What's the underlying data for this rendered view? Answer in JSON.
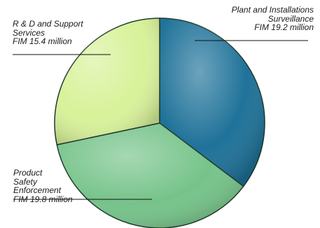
{
  "chart_data": {
    "type": "pie",
    "unit": "FIM million",
    "slices": [
      {
        "name": "Plant and Installations Surveillance",
        "value": 19.2,
        "color": "#1f7299",
        "label_lines": [
          "Plant and Installations",
          "Surveillance",
          "FIM 19.2 million"
        ]
      },
      {
        "name": "Product Safety Enforcement",
        "value": 19.8,
        "color": "#76c38a",
        "label_lines": [
          "Product",
          "Safety",
          "Enforcement",
          "FIM 19.8 million"
        ]
      },
      {
        "name": "R & D and Support Services",
        "value": 15.4,
        "color": "#d8f29a",
        "label_lines": [
          "R & D and Support",
          "Services",
          "FIM 15.4 million"
        ]
      }
    ],
    "start_angle_deg": 0,
    "direction": "clockwise",
    "legend": "none",
    "grid": false
  }
}
